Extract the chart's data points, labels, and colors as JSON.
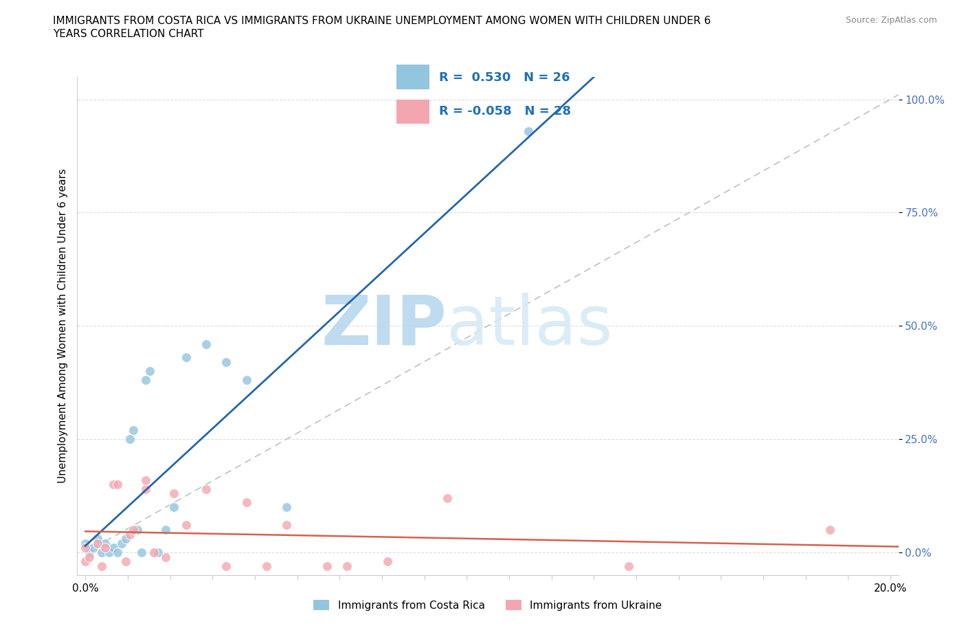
{
  "title_line1": "IMMIGRANTS FROM COSTA RICA VS IMMIGRANTS FROM UKRAINE UNEMPLOYMENT AMONG WOMEN WITH CHILDREN UNDER 6",
  "title_line2": "YEARS CORRELATION CHART",
  "source": "Source: ZipAtlas.com",
  "ylabel": "Unemployment Among Women with Children Under 6 years",
  "r_costa_rica": 0.53,
  "n_costa_rica": 26,
  "r_ukraine": -0.058,
  "n_ukraine": 28,
  "ytick_labels": [
    "0.0%",
    "25.0%",
    "50.0%",
    "75.0%",
    "100.0%"
  ],
  "ytick_values": [
    0.0,
    0.25,
    0.5,
    0.75,
    1.0
  ],
  "xtick_labels": [
    "0.0%",
    "",
    "",
    "",
    "",
    "",
    "",
    "",
    "",
    "",
    "",
    "",
    "",
    "",
    "",
    "",
    "",
    "",
    "",
    "20.0%"
  ],
  "xlim": [
    -0.002,
    0.202
  ],
  "ylim": [
    -0.05,
    1.05
  ],
  "color_costa_rica": "#92c5de",
  "color_ukraine": "#f4a6b0",
  "regression_color_costa_rica": "#2166ac",
  "regression_color_ukraine": "#d6604d",
  "diagonal_color": "#c0c0c0",
  "watermark_zip": "ZIP",
  "watermark_atlas": "atlas",
  "watermark_color": "#d0e8f5",
  "legend_box_color": "#f0f0f0",
  "costa_rica_x": [
    0.0,
    0.001,
    0.002,
    0.003,
    0.004,
    0.005,
    0.006,
    0.007,
    0.008,
    0.009,
    0.01,
    0.011,
    0.012,
    0.013,
    0.014,
    0.015,
    0.016,
    0.018,
    0.02,
    0.022,
    0.025,
    0.03,
    0.035,
    0.04,
    0.05,
    0.11
  ],
  "costa_rica_y": [
    0.02,
    0.0,
    0.01,
    0.03,
    0.0,
    0.02,
    0.0,
    0.01,
    0.0,
    0.02,
    0.03,
    0.25,
    0.27,
    0.05,
    0.0,
    0.38,
    0.4,
    0.0,
    0.05,
    0.1,
    0.43,
    0.46,
    0.42,
    0.38,
    0.1,
    0.93
  ],
  "ukraine_x": [
    0.0,
    0.0,
    0.001,
    0.003,
    0.004,
    0.005,
    0.007,
    0.008,
    0.01,
    0.011,
    0.012,
    0.015,
    0.015,
    0.017,
    0.02,
    0.022,
    0.025,
    0.03,
    0.035,
    0.04,
    0.045,
    0.05,
    0.06,
    0.065,
    0.075,
    0.09,
    0.135,
    0.185
  ],
  "ukraine_y": [
    -0.02,
    0.01,
    -0.01,
    0.02,
    -0.03,
    0.01,
    0.15,
    0.15,
    -0.02,
    0.04,
    0.05,
    0.14,
    0.16,
    0.0,
    -0.01,
    0.13,
    0.06,
    0.14,
    -0.03,
    0.11,
    -0.03,
    0.06,
    -0.03,
    -0.03,
    -0.02,
    0.12,
    -0.03,
    0.05
  ],
  "background_color": "#ffffff",
  "grid_color": "#dddddd",
  "spine_color": "#cccccc",
  "tick_color": "#4472c4"
}
